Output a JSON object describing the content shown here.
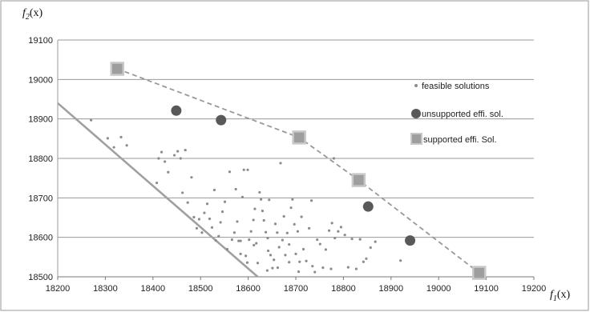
{
  "chart_data": {
    "type": "scatter",
    "xlabel": "f1(x)",
    "ylabel": "f2(x)",
    "xlabel_main": "f",
    "xlabel_sub": "1",
    "xlabel_arg": "(x)",
    "ylabel_main": "f",
    "ylabel_sub": "2",
    "ylabel_arg": "(x)",
    "xlim": [
      18200,
      19200
    ],
    "ylim": [
      18500,
      19100
    ],
    "x_ticks": [
      18200,
      18300,
      18400,
      18500,
      18600,
      18700,
      18800,
      18900,
      19000,
      19100,
      19200
    ],
    "y_ticks": [
      18500,
      18600,
      18700,
      18800,
      18900,
      19000,
      19100
    ],
    "grid": "horizontal",
    "legend_position": "right",
    "colors": {
      "feasible": "#8c8c8c",
      "unsupported": "#595959",
      "supported_fill": "#9e9e9e",
      "supported_edge": "#c8c8c8",
      "front_line": "#999999",
      "bound_line": "#a0a0a0",
      "grid": "#999999",
      "frame": "#9a9a9a"
    },
    "series": [
      {
        "name": "feasible solutions",
        "marker": "small-dot",
        "points": [
          [
            18270,
            18897
          ],
          [
            18305,
            18851
          ],
          [
            18318,
            18828
          ],
          [
            18333,
            18854
          ],
          [
            18345,
            18833
          ],
          [
            18408,
            18738
          ],
          [
            18412,
            18800
          ],
          [
            18418,
            18816
          ],
          [
            18425,
            18792
          ],
          [
            18432,
            18765
          ],
          [
            18445,
            18808
          ],
          [
            18452,
            18818
          ],
          [
            18458,
            18800
          ],
          [
            18462,
            18713
          ],
          [
            18468,
            18821
          ],
          [
            18473,
            18688
          ],
          [
            18481,
            18752
          ],
          [
            18486,
            18651
          ],
          [
            18492,
            18623
          ],
          [
            18497,
            18646
          ],
          [
            18503,
            18612
          ],
          [
            18508,
            18662
          ],
          [
            18514,
            18685
          ],
          [
            18519,
            18647
          ],
          [
            18524,
            18625
          ],
          [
            18529,
            18720
          ],
          [
            18532,
            18592
          ],
          [
            18538,
            18603
          ],
          [
            18542,
            18638
          ],
          [
            18546,
            18665
          ],
          [
            18551,
            18690
          ],
          [
            18556,
            18570
          ],
          [
            18561,
            18766
          ],
          [
            18566,
            18594
          ],
          [
            18571,
            18612
          ],
          [
            18574,
            18722
          ],
          [
            18577,
            18640
          ],
          [
            18580,
            18591
          ],
          [
            18584,
            18591
          ],
          [
            18588,
            18702
          ],
          [
            18591,
            18771
          ],
          [
            18595,
            18553
          ],
          [
            18599,
            18771
          ],
          [
            18602,
            18594
          ],
          [
            18606,
            18615
          ],
          [
            18611,
            18644
          ],
          [
            18614,
            18672
          ],
          [
            18617,
            18585
          ],
          [
            18620,
            18535
          ],
          [
            18624,
            18714
          ],
          [
            18627,
            18696
          ],
          [
            18630,
            18667
          ],
          [
            18633,
            18643
          ],
          [
            18637,
            18613
          ],
          [
            18641,
            18598
          ],
          [
            18644,
            18695
          ],
          [
            18647,
            18555
          ],
          [
            18651,
            18522
          ],
          [
            18654,
            18543
          ],
          [
            18657,
            18634
          ],
          [
            18661,
            18612
          ],
          [
            18665,
            18575
          ],
          [
            18668,
            18788
          ],
          [
            18672,
            18593
          ],
          [
            18675,
            18653
          ],
          [
            18678,
            18555
          ],
          [
            18682,
            18611
          ],
          [
            18686,
            18582
          ],
          [
            18690,
            18675
          ],
          [
            18693,
            18696
          ],
          [
            18697,
            18633
          ],
          [
            18700,
            18558
          ],
          [
            18704,
            18615
          ],
          [
            18708,
            18538
          ],
          [
            18712,
            18652
          ],
          [
            18716,
            18570
          ],
          [
            18722,
            18540
          ],
          [
            18728,
            18623
          ],
          [
            18733,
            18693
          ],
          [
            18740,
            18512
          ],
          [
            18745,
            18594
          ],
          [
            18751,
            18583
          ],
          [
            18757,
            18523
          ],
          [
            18763,
            18569
          ],
          [
            18770,
            18617
          ],
          [
            18776,
            18636
          ],
          [
            18782,
            18598
          ],
          [
            18789,
            18615
          ],
          [
            18795,
            18626
          ],
          [
            18803,
            18606
          ],
          [
            18810,
            18524
          ],
          [
            18818,
            18596
          ],
          [
            18827,
            18520
          ],
          [
            18835,
            18595
          ],
          [
            18842,
            18538
          ],
          [
            18848,
            18546
          ],
          [
            18857,
            18574
          ],
          [
            18867,
            18589
          ],
          [
            18920,
            18541
          ],
          [
            18640,
            18516
          ],
          [
            18662,
            18523
          ],
          [
            18686,
            18537
          ],
          [
            18706,
            18513
          ],
          [
            18735,
            18527
          ],
          [
            18584,
            18558
          ],
          [
            18612,
            18580
          ],
          [
            18598,
            18536
          ],
          [
            18642,
            18566
          ],
          [
            18780,
            18800
          ],
          [
            18774,
            18520
          ]
        ]
      },
      {
        "name": "unsupported effi. sol.",
        "marker": "dark-circle",
        "points": [
          [
            18449,
            18921
          ],
          [
            18543,
            18897
          ],
          [
            18852,
            18678
          ],
          [
            18940,
            18592
          ]
        ]
      },
      {
        "name": "supported effi. Sol.",
        "marker": "square",
        "points": [
          [
            18325,
            19027
          ],
          [
            18707,
            18853
          ],
          [
            18832,
            18745
          ],
          [
            19085,
            18510
          ]
        ]
      }
    ],
    "lines": [
      {
        "style": "dashed",
        "points": [
          [
            18325,
            19027
          ],
          [
            18707,
            18853
          ],
          [
            18832,
            18745
          ],
          [
            19085,
            18510
          ]
        ]
      },
      {
        "style": "solid",
        "points": [
          [
            18200,
            18940
          ],
          [
            18620,
            18500
          ]
        ]
      }
    ]
  }
}
